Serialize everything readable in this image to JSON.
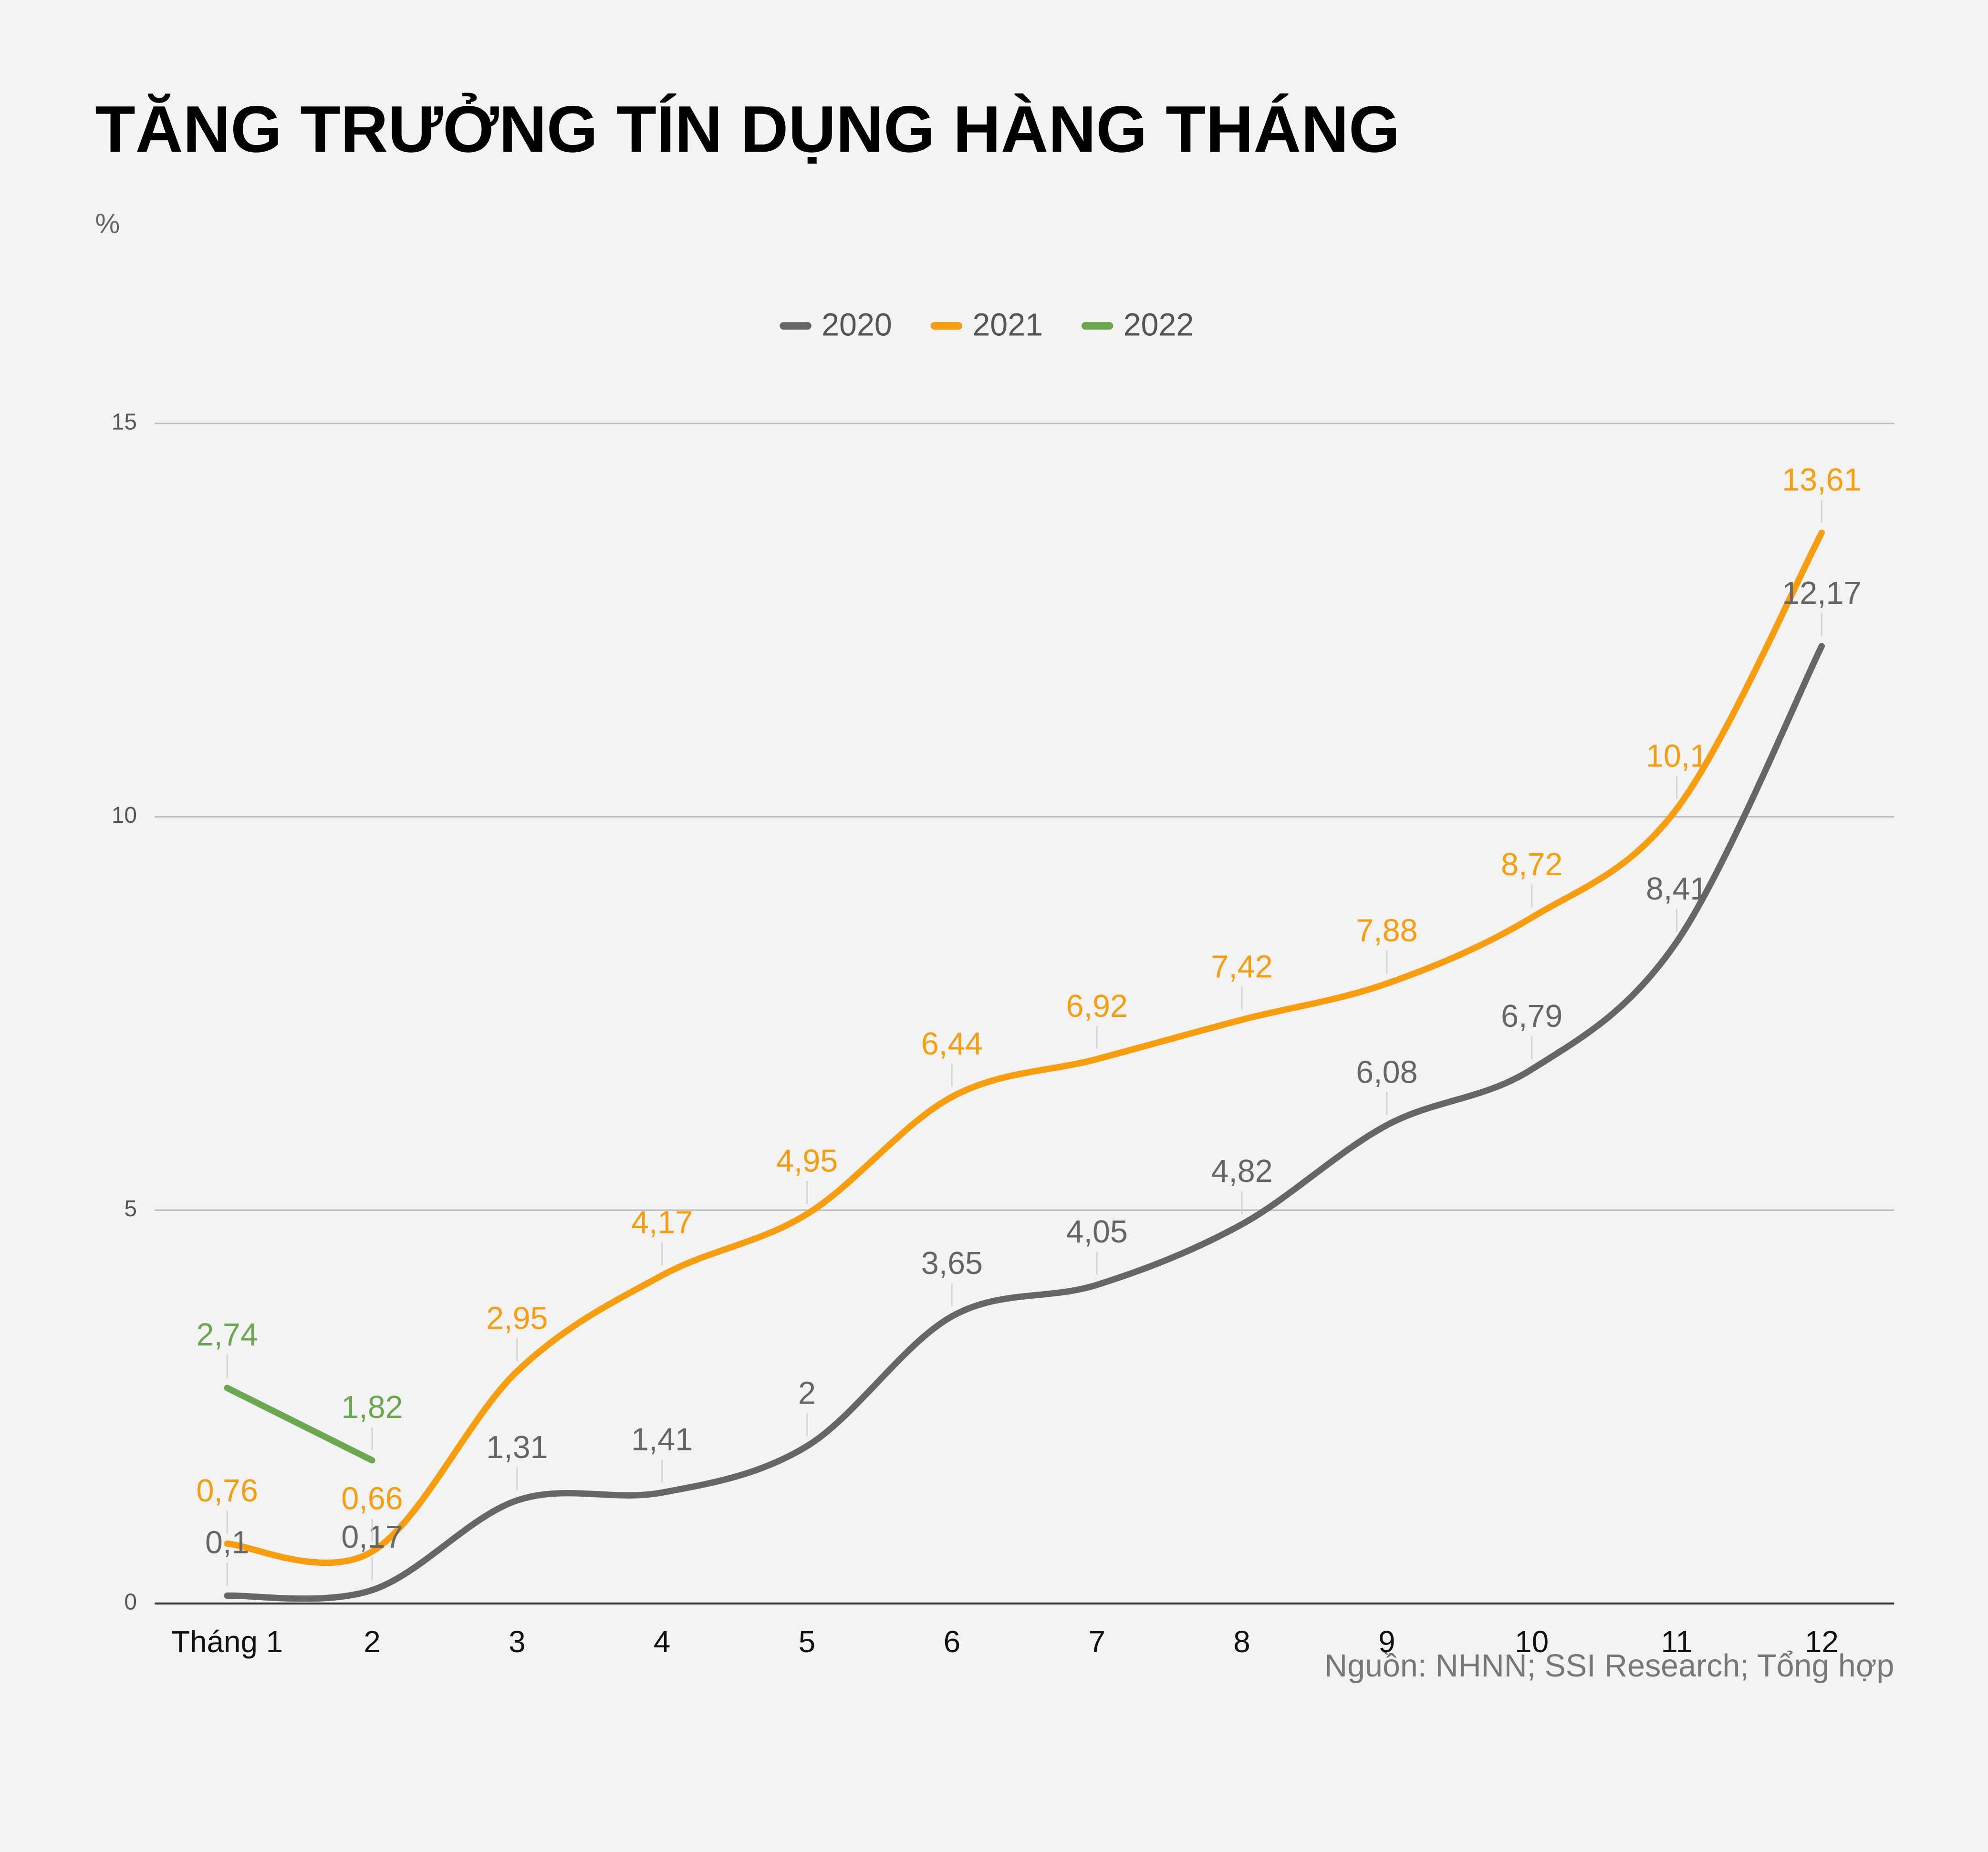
{
  "chart_data": {
    "type": "line",
    "title": "TĂNG TRƯỞNG TÍN DỤNG HÀNG THÁNG",
    "y_label": "%",
    "source": "Nguồn: NHNN; SSI Research; Tổng hợp",
    "categories": [
      "Tháng 1",
      "2",
      "3",
      "4",
      "5",
      "6",
      "7",
      "8",
      "9",
      "10",
      "11",
      "12"
    ],
    "series": [
      {
        "name": "2020",
        "color": "#666666",
        "values": [
          0.1,
          0.17,
          1.31,
          1.41,
          2,
          3.65,
          4.05,
          4.82,
          6.08,
          6.79,
          8.41,
          12.17
        ],
        "value_labels": [
          "0,1",
          "0,17",
          "1,31",
          "1,41",
          "2",
          "3,65",
          "4,05",
          "4,82",
          "6,08",
          "6,79",
          "8,41",
          "12,17"
        ]
      },
      {
        "name": "2021",
        "color": "#f79d0e",
        "values": [
          0.76,
          0.66,
          2.95,
          4.17,
          4.95,
          6.44,
          6.92,
          7.42,
          7.88,
          8.72,
          10.1,
          13.61
        ],
        "value_labels": [
          "0,76",
          "0,66",
          "2,95",
          "4,17",
          "4,95",
          "6,44",
          "6,92",
          "7,42",
          "7,88",
          "8,72",
          "10,1",
          "13,61"
        ]
      },
      {
        "name": "2022",
        "color": "#6aa84f",
        "values": [
          2.74,
          1.82,
          null,
          null,
          null,
          null,
          null,
          null,
          null,
          null,
          null,
          null
        ],
        "value_labels": [
          "2,74",
          "1,82",
          null,
          null,
          null,
          null,
          null,
          null,
          null,
          null,
          null,
          null
        ]
      }
    ],
    "ylim": [
      0,
      15
    ],
    "yticks": [
      0,
      5,
      10,
      15
    ],
    "grid": true,
    "smooth": true,
    "legend": "top"
  }
}
